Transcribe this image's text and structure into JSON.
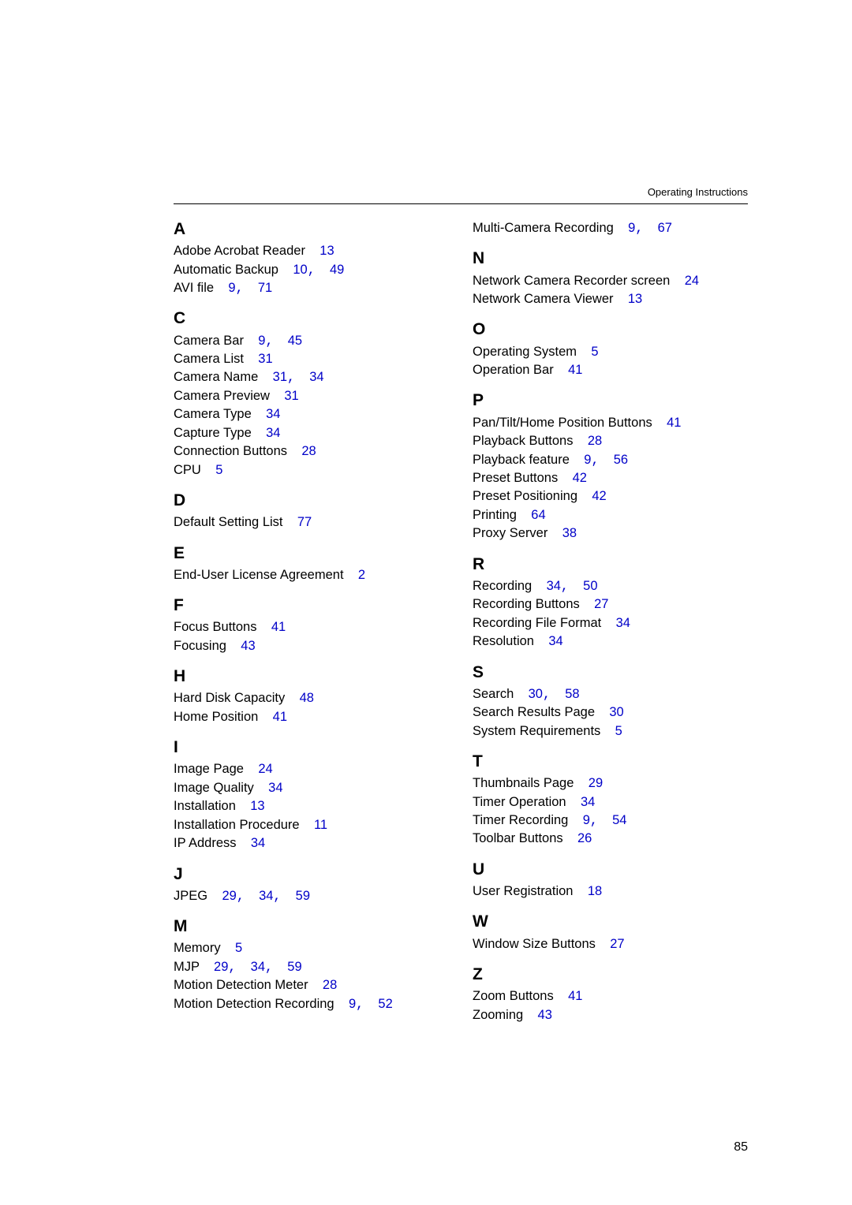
{
  "document": {
    "running_head": "Operating Instructions",
    "page_number": "85"
  },
  "colors": {
    "text": "#000000",
    "link_blue": "#0000c8",
    "background": "#ffffff",
    "rule": "#000000"
  },
  "index": {
    "left_column": [
      {
        "letter": "A",
        "entries": [
          {
            "text": "Adobe Acrobat Reader",
            "refs": [
              "13"
            ]
          },
          {
            "text": "Automatic Backup",
            "refs": [
              "10",
              "49"
            ]
          },
          {
            "text": "AVI file",
            "refs": [
              "9",
              "71"
            ]
          }
        ]
      },
      {
        "letter": "C",
        "entries": [
          {
            "text": "Camera Bar",
            "refs": [
              "9",
              "45"
            ]
          },
          {
            "text": "Camera List",
            "refs": [
              "31"
            ]
          },
          {
            "text": "Camera Name",
            "refs": [
              "31",
              "34"
            ]
          },
          {
            "text": "Camera Preview",
            "refs": [
              "31"
            ]
          },
          {
            "text": "Camera Type",
            "refs": [
              "34"
            ]
          },
          {
            "text": "Capture Type",
            "refs": [
              "34"
            ]
          },
          {
            "text": "Connection Buttons",
            "refs": [
              "28"
            ]
          },
          {
            "text": "CPU",
            "refs": [
              "5"
            ]
          }
        ]
      },
      {
        "letter": "D",
        "entries": [
          {
            "text": "Default Setting List",
            "refs": [
              "77"
            ]
          }
        ]
      },
      {
        "letter": "E",
        "entries": [
          {
            "text": "End-User License Agreement",
            "refs": [
              "2"
            ]
          }
        ]
      },
      {
        "letter": "F",
        "entries": [
          {
            "text": "Focus Buttons",
            "refs": [
              "41"
            ]
          },
          {
            "text": "Focusing",
            "refs": [
              "43"
            ]
          }
        ]
      },
      {
        "letter": "H",
        "entries": [
          {
            "text": "Hard Disk Capacity",
            "refs": [
              "48"
            ]
          },
          {
            "text": "Home Position",
            "refs": [
              "41"
            ]
          }
        ]
      },
      {
        "letter": "I",
        "entries": [
          {
            "text": "Image Page",
            "refs": [
              "24"
            ]
          },
          {
            "text": "Image Quality",
            "refs": [
              "34"
            ]
          },
          {
            "text": "Installation",
            "refs": [
              "13"
            ]
          },
          {
            "text": "Installation Procedure",
            "refs": [
              "11"
            ]
          },
          {
            "text": "IP Address",
            "refs": [
              "34"
            ]
          }
        ]
      },
      {
        "letter": "J",
        "entries": [
          {
            "text": "JPEG",
            "refs": [
              "29",
              "34",
              "59"
            ]
          }
        ]
      },
      {
        "letter": "M",
        "entries": [
          {
            "text": "Memory",
            "refs": [
              "5"
            ]
          },
          {
            "text": "MJP",
            "refs": [
              "29",
              "34",
              "59"
            ]
          },
          {
            "text": "Motion Detection Meter",
            "refs": [
              "28"
            ]
          },
          {
            "text": "Motion Detection Recording",
            "refs": [
              "9",
              "52"
            ]
          }
        ]
      }
    ],
    "right_column_prelude": [
      {
        "text": "Multi-Camera Recording",
        "refs": [
          "9",
          "67"
        ]
      }
    ],
    "right_column": [
      {
        "letter": "N",
        "entries": [
          {
            "text": "Network Camera Recorder screen",
            "refs": [
              "24"
            ]
          },
          {
            "text": "Network Camera Viewer",
            "refs": [
              "13"
            ]
          }
        ]
      },
      {
        "letter": "O",
        "entries": [
          {
            "text": "Operating System",
            "refs": [
              "5"
            ]
          },
          {
            "text": "Operation Bar",
            "refs": [
              "41"
            ]
          }
        ]
      },
      {
        "letter": "P",
        "entries": [
          {
            "text": "Pan/Tilt/Home Position Buttons",
            "refs": [
              "41"
            ]
          },
          {
            "text": "Playback Buttons",
            "refs": [
              "28"
            ]
          },
          {
            "text": "Playback feature",
            "refs": [
              "9",
              "56"
            ]
          },
          {
            "text": "Preset Buttons",
            "refs": [
              "42"
            ]
          },
          {
            "text": "Preset Positioning",
            "refs": [
              "42"
            ]
          },
          {
            "text": "Printing",
            "refs": [
              "64"
            ]
          },
          {
            "text": "Proxy Server",
            "refs": [
              "38"
            ]
          }
        ]
      },
      {
        "letter": "R",
        "entries": [
          {
            "text": "Recording",
            "refs": [
              "34",
              "50"
            ]
          },
          {
            "text": "Recording Buttons",
            "refs": [
              "27"
            ]
          },
          {
            "text": "Recording File Format",
            "refs": [
              "34"
            ]
          },
          {
            "text": "Resolution",
            "refs": [
              "34"
            ]
          }
        ]
      },
      {
        "letter": "S",
        "entries": [
          {
            "text": "Search",
            "refs": [
              "30",
              "58"
            ]
          },
          {
            "text": "Search Results Page",
            "refs": [
              "30"
            ]
          },
          {
            "text": "System Requirements",
            "refs": [
              "5"
            ]
          }
        ]
      },
      {
        "letter": "T",
        "entries": [
          {
            "text": "Thumbnails Page",
            "refs": [
              "29"
            ]
          },
          {
            "text": "Timer Operation",
            "refs": [
              "34"
            ]
          },
          {
            "text": "Timer Recording",
            "refs": [
              "9",
              "54"
            ]
          },
          {
            "text": "Toolbar Buttons",
            "refs": [
              "26"
            ]
          }
        ]
      },
      {
        "letter": "U",
        "entries": [
          {
            "text": "User Registration",
            "refs": [
              "18"
            ]
          }
        ]
      },
      {
        "letter": "W",
        "entries": [
          {
            "text": "Window Size Buttons",
            "refs": [
              "27"
            ]
          }
        ]
      },
      {
        "letter": "Z",
        "entries": [
          {
            "text": "Zoom Buttons",
            "refs": [
              "41"
            ]
          },
          {
            "text": "Zooming",
            "refs": [
              "43"
            ]
          }
        ]
      }
    ]
  }
}
